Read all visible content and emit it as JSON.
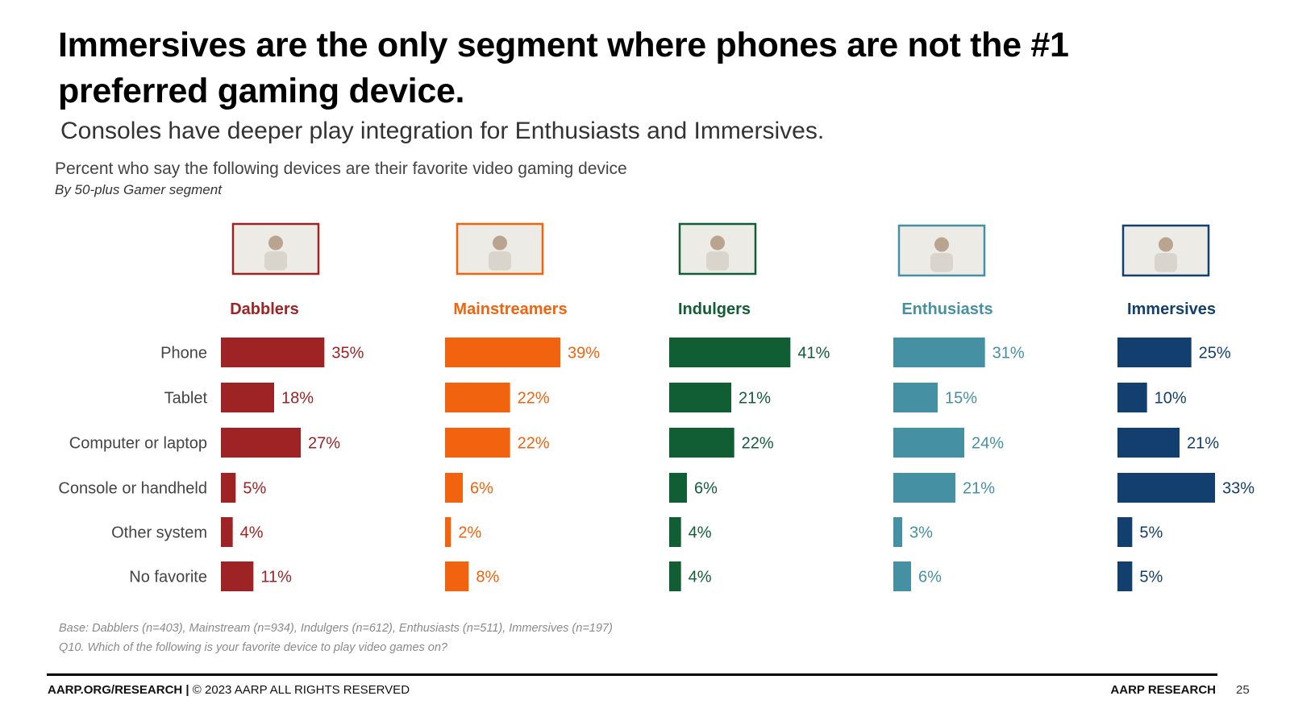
{
  "header": {
    "title": "Immersives are the only segment where phones are not the #1 preferred gaming device.",
    "subtitle": "Consoles have deeper play integration for Enthusiasts and Immersives."
  },
  "chart_data": {
    "type": "bar",
    "orientation": "horizontal",
    "title": "Percent who say the following devices are their favorite video gaming device",
    "subtitle": "By 50-plus Gamer segment",
    "categories": [
      "Phone",
      "Tablet",
      "Computer or laptop",
      "Console or handheld",
      "Other system",
      "No favorite"
    ],
    "series": [
      {
        "name": "Dabblers",
        "color": "#9e2324",
        "values": [
          35,
          18,
          27,
          5,
          4,
          11
        ]
      },
      {
        "name": "Mainstreamers",
        "color": "#f2630f",
        "values": [
          39,
          22,
          22,
          6,
          2,
          8
        ]
      },
      {
        "name": "Indulgers",
        "color": "#115e35",
        "values": [
          41,
          21,
          22,
          6,
          4,
          4
        ]
      },
      {
        "name": "Enthusiasts",
        "color": "#4690a3",
        "values": [
          31,
          15,
          24,
          21,
          3,
          6
        ]
      },
      {
        "name": "Immersives",
        "color": "#133f6e",
        "values": [
          25,
          10,
          21,
          33,
          5,
          5
        ]
      }
    ],
    "value_suffix": "%",
    "xlim": [
      0,
      45
    ]
  },
  "footnotes": {
    "base": "Base: Dabblers (n=403), Mainstream (n=934), Indulgers (n=612), Enthusiasts (n=511), Immersives (n=197)",
    "question": "Q10. Which of the following is your favorite device to play video games on?"
  },
  "footer": {
    "left_bold": "AARP.ORG/RESEARCH |",
    "left_rest": " © 2023 AARP ALL RIGHTS RESERVED",
    "right": "AARP RESEARCH",
    "page_number": "25"
  }
}
